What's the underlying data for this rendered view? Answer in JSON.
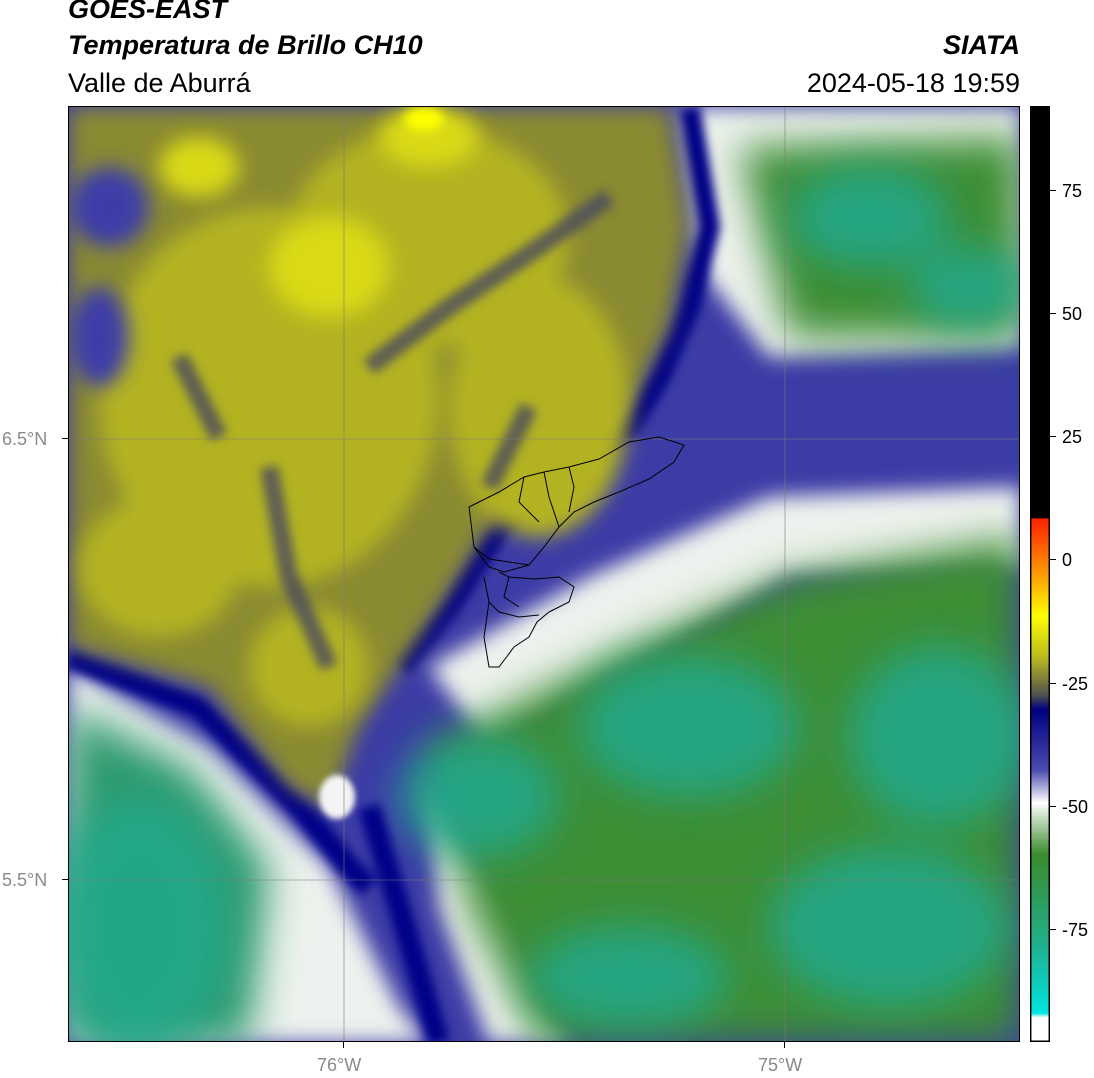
{
  "header": {
    "satellite": "GOES-EAST",
    "product": "Temperatura de Brillo CH10",
    "region": "Valle de Aburrá",
    "organization": "SIATA",
    "timestamp": "2024-05-18 19:59"
  },
  "map": {
    "lat_labels": [
      {
        "value": 6.5,
        "label": "6.5°N"
      },
      {
        "value": 5.5,
        "label": "5.5°N"
      }
    ],
    "lon_labels": [
      {
        "value": -76,
        "label": "76°W"
      },
      {
        "value": -75,
        "label": "75°W"
      }
    ],
    "gridlines": true
  },
  "colorbar": {
    "ticks": [
      {
        "value": 75,
        "label": "75"
      },
      {
        "value": 50,
        "label": "50"
      },
      {
        "value": 25,
        "label": "25"
      },
      {
        "value": 0,
        "label": "0"
      },
      {
        "value": -25,
        "label": "-25"
      },
      {
        "value": -50,
        "label": "-50"
      },
      {
        "value": -75,
        "label": "-75"
      }
    ],
    "colors": {
      "black": "#000000",
      "red": "#ff2200",
      "orange": "#ff9900",
      "yellow": "#ffff00",
      "olive": "#b8b820",
      "navy": "#000080",
      "blue": "#4b4bb0",
      "white": "#ffffff",
      "green": "#3a8c2c",
      "teal": "#20b090",
      "cyan": "#00e5e0"
    }
  }
}
